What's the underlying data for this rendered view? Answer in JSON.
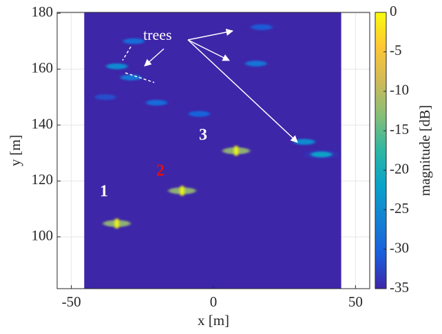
{
  "chart_data": {
    "type": "heatmap",
    "xlabel": "x [m]",
    "ylabel": "y [m]",
    "colorbar_label": "magnitude [dB]",
    "xlim": [
      -55,
      55
    ],
    "ylim": [
      81.5,
      180.3
    ],
    "xticks": [
      -50,
      0,
      50
    ],
    "yticks": [
      100,
      120,
      140,
      160,
      180
    ],
    "image_xlim": [
      -45.5,
      45
    ],
    "clim": [
      -35,
      0
    ],
    "cticks": [
      0,
      -5,
      -10,
      -15,
      -20,
      -25,
      -30,
      -35
    ],
    "grid": true,
    "hotspots": {
      "x": [
        -34,
        -11,
        8,
        38,
        32,
        15,
        -34,
        -29,
        -20,
        -5,
        17,
        -28,
        -38
      ],
      "y": [
        104.8,
        116.5,
        130.8,
        129.5,
        134,
        162,
        161,
        157,
        148,
        144,
        175,
        170,
        150
      ],
      "values": [
        0,
        0,
        0,
        -22,
        -25,
        -28,
        -25,
        -28,
        -29,
        -30,
        -31,
        -29,
        -32
      ]
    },
    "annotations": [
      "trees",
      "1",
      "2",
      "3"
    ]
  }
}
